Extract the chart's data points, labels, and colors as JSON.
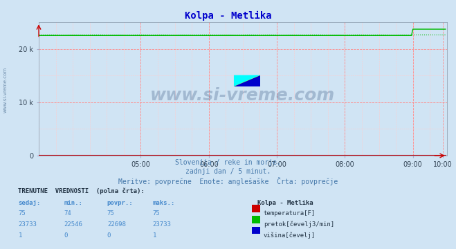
{
  "title": "Kolpa - Metlika",
  "title_color": "#0000cc",
  "bg_color": "#d0e4f4",
  "plot_bg_color": "#d0e4f4",
  "x_min": 0,
  "x_max": 288,
  "y_min": 0,
  "y_max": 25000,
  "y_ticks": [
    0,
    10000,
    20000
  ],
  "y_tick_labels": [
    "0",
    "10 k",
    "20 k"
  ],
  "x_tick_positions": [
    72,
    120,
    168,
    216,
    264,
    285
  ],
  "x_tick_labels": [
    "05:00",
    "06:00",
    "07:00",
    "08:00",
    "09:00",
    "10:00"
  ],
  "grid_color_major": "#ff8888",
  "grid_color_minor": "#ffcccc",
  "watermark": "www.si-vreme.com",
  "subtitle_lines": [
    "Slovenija / reke in morje.",
    "zadnji dan / 5 minut.",
    "Meritve: povprečne  Enote: anglešaške  Črta: povprečje"
  ],
  "legend_title": "TRENUTNE  VREDNOSTI  (polna črta):",
  "col_headers": [
    "sedaj:",
    "min.:",
    "povpr.:",
    "maks.:"
  ],
  "col_header_color": "#4488cc",
  "station_name": "Kolpa - Metlika",
  "rows": [
    {
      "sedaj": "75",
      "min": "74",
      "povpr": "75",
      "maks": "75",
      "color": "#cc0000",
      "label": "temperatura[F]"
    },
    {
      "sedaj": "23733",
      "min": "22546",
      "povpr": "22698",
      "maks": "23733",
      "color": "#00bb00",
      "label": "pretok[čevelj3/min]"
    },
    {
      "sedaj": "1",
      "min": "0",
      "povpr": "0",
      "maks": "1",
      "color": "#0000cc",
      "label": "višina[čevelj]"
    }
  ],
  "flow_avg_value": 22698,
  "flow_flat_value": 22546,
  "flow_jump_start_idx": 264,
  "flow_jump_value": 23733,
  "n_points": 288,
  "line_colors": {
    "temperature": "#cc0000",
    "flow": "#00bb00",
    "height": "#0000cc"
  },
  "sidebar_label": "www.si-vreme.com"
}
